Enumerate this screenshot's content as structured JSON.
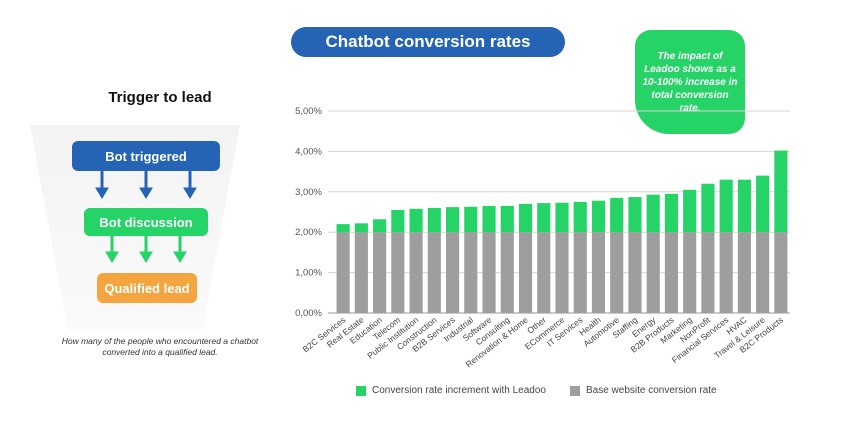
{
  "left_panel": {
    "title": "Trigger to lead",
    "stages": [
      "Bot triggered",
      "Bot discussion",
      "Qualified lead"
    ],
    "caption": "How many of the people who encountered a chatbot converted into a qualified lead.",
    "colors": {
      "blue": "#2563b5",
      "green": "#25d366",
      "orange": "#f4a540"
    }
  },
  "callout": "The impact of Leadoo shows as a 10-100% increase in total conversion rate.",
  "chart_data": {
    "type": "bar",
    "stacked": true,
    "title": "Chatbot conversion rates",
    "categories": [
      "B2C Services",
      "Real Estate",
      "Education",
      "Telecom",
      "Public Institution",
      "Construction",
      "B2B Services",
      "Industrial",
      "Software",
      "Consulting",
      "Renovation & Home",
      "Other",
      "ECommerce",
      "IT Services",
      "Health",
      "Automotive",
      "Staffing",
      "Energy",
      "B2B Products",
      "Marketing",
      "NonProfit",
      "Financial Services",
      "HVAC",
      "Travel & Leisure",
      "B2C Products"
    ],
    "series": [
      {
        "name": "Base website conversion rate",
        "color": "#9e9e9e",
        "values": [
          2.0,
          2.0,
          2.0,
          2.0,
          2.0,
          2.0,
          2.0,
          2.0,
          2.0,
          2.0,
          2.0,
          2.0,
          2.0,
          2.0,
          2.0,
          2.0,
          2.0,
          2.0,
          2.0,
          2.0,
          2.0,
          2.0,
          2.0,
          2.0,
          2.0
        ]
      },
      {
        "name": "Conversion rate increment with Leadoo",
        "color": "#25d366",
        "values": [
          0.2,
          0.22,
          0.32,
          0.55,
          0.58,
          0.6,
          0.62,
          0.63,
          0.65,
          0.65,
          0.7,
          0.72,
          0.73,
          0.75,
          0.78,
          0.85,
          0.87,
          0.93,
          0.95,
          1.05,
          1.2,
          1.3,
          1.3,
          1.4,
          2.02
        ]
      }
    ],
    "yticks": [
      "0,00%",
      "1,00%",
      "2,00%",
      "3,00%",
      "4,00%",
      "5,00%"
    ],
    "ylim": [
      0,
      5
    ],
    "grid": true,
    "legend": [
      {
        "label": "Conversion rate increment with Leadoo",
        "color": "#25d366"
      },
      {
        "label": "Base website conversion rate",
        "color": "#9e9e9e"
      }
    ],
    "legend_position": "bottom"
  }
}
